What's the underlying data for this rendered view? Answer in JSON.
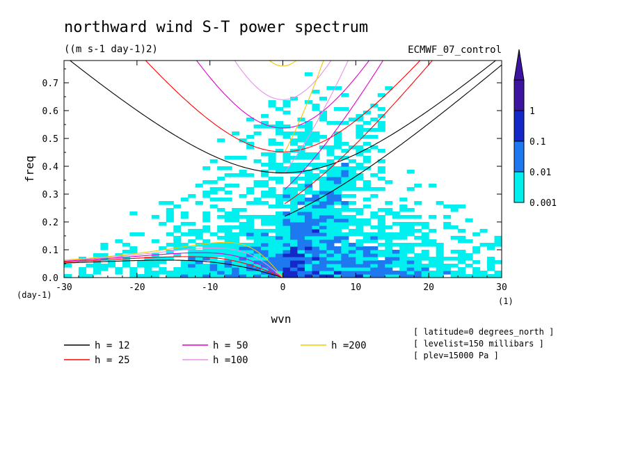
{
  "chart_data": {
    "type": "heatmap",
    "title": "northward wind S-T power spectrum",
    "subtitle": "((m s-1 day-1)2)",
    "dataset": "ECMWF_07_control",
    "xlabel": "wvn",
    "ylabel": "freq",
    "x_unit": "(1)",
    "y_unit": "(day-1)",
    "xlim": [
      -30,
      30
    ],
    "ylim": [
      0,
      0.78
    ],
    "xticks": [
      "-30",
      "-20",
      "-10",
      "0",
      "10",
      "20",
      "30"
    ],
    "yticks": [
      "0.0",
      "0.1",
      "0.2",
      "0.3",
      "0.4",
      "0.5",
      "0.6",
      "0.7"
    ],
    "colorbar": {
      "levels": [
        "0.001",
        "0.01",
        "0.1",
        "1"
      ],
      "colors": [
        "#00f0f0",
        "#1e78f0",
        "#1428c8",
        "#3c14a0"
      ]
    },
    "dispersion_curves": [
      {
        "name": "h = 12",
        "h": 12,
        "color": "#000000"
      },
      {
        "name": "h = 25",
        "h": 25,
        "color": "#ff0000"
      },
      {
        "name": "h = 50",
        "h": 50,
        "color": "#e000c8"
      },
      {
        "name": "h =100",
        "h": 100,
        "color": "#e890e8"
      },
      {
        "name": "h =200",
        "h": 200,
        "color": "#f0c800"
      }
    ],
    "metadata_lines": [
      "[ latitude=0 degrees_north ]",
      "[ levelist=150 millibars ]",
      "[ plev=15000 Pa ]"
    ]
  }
}
